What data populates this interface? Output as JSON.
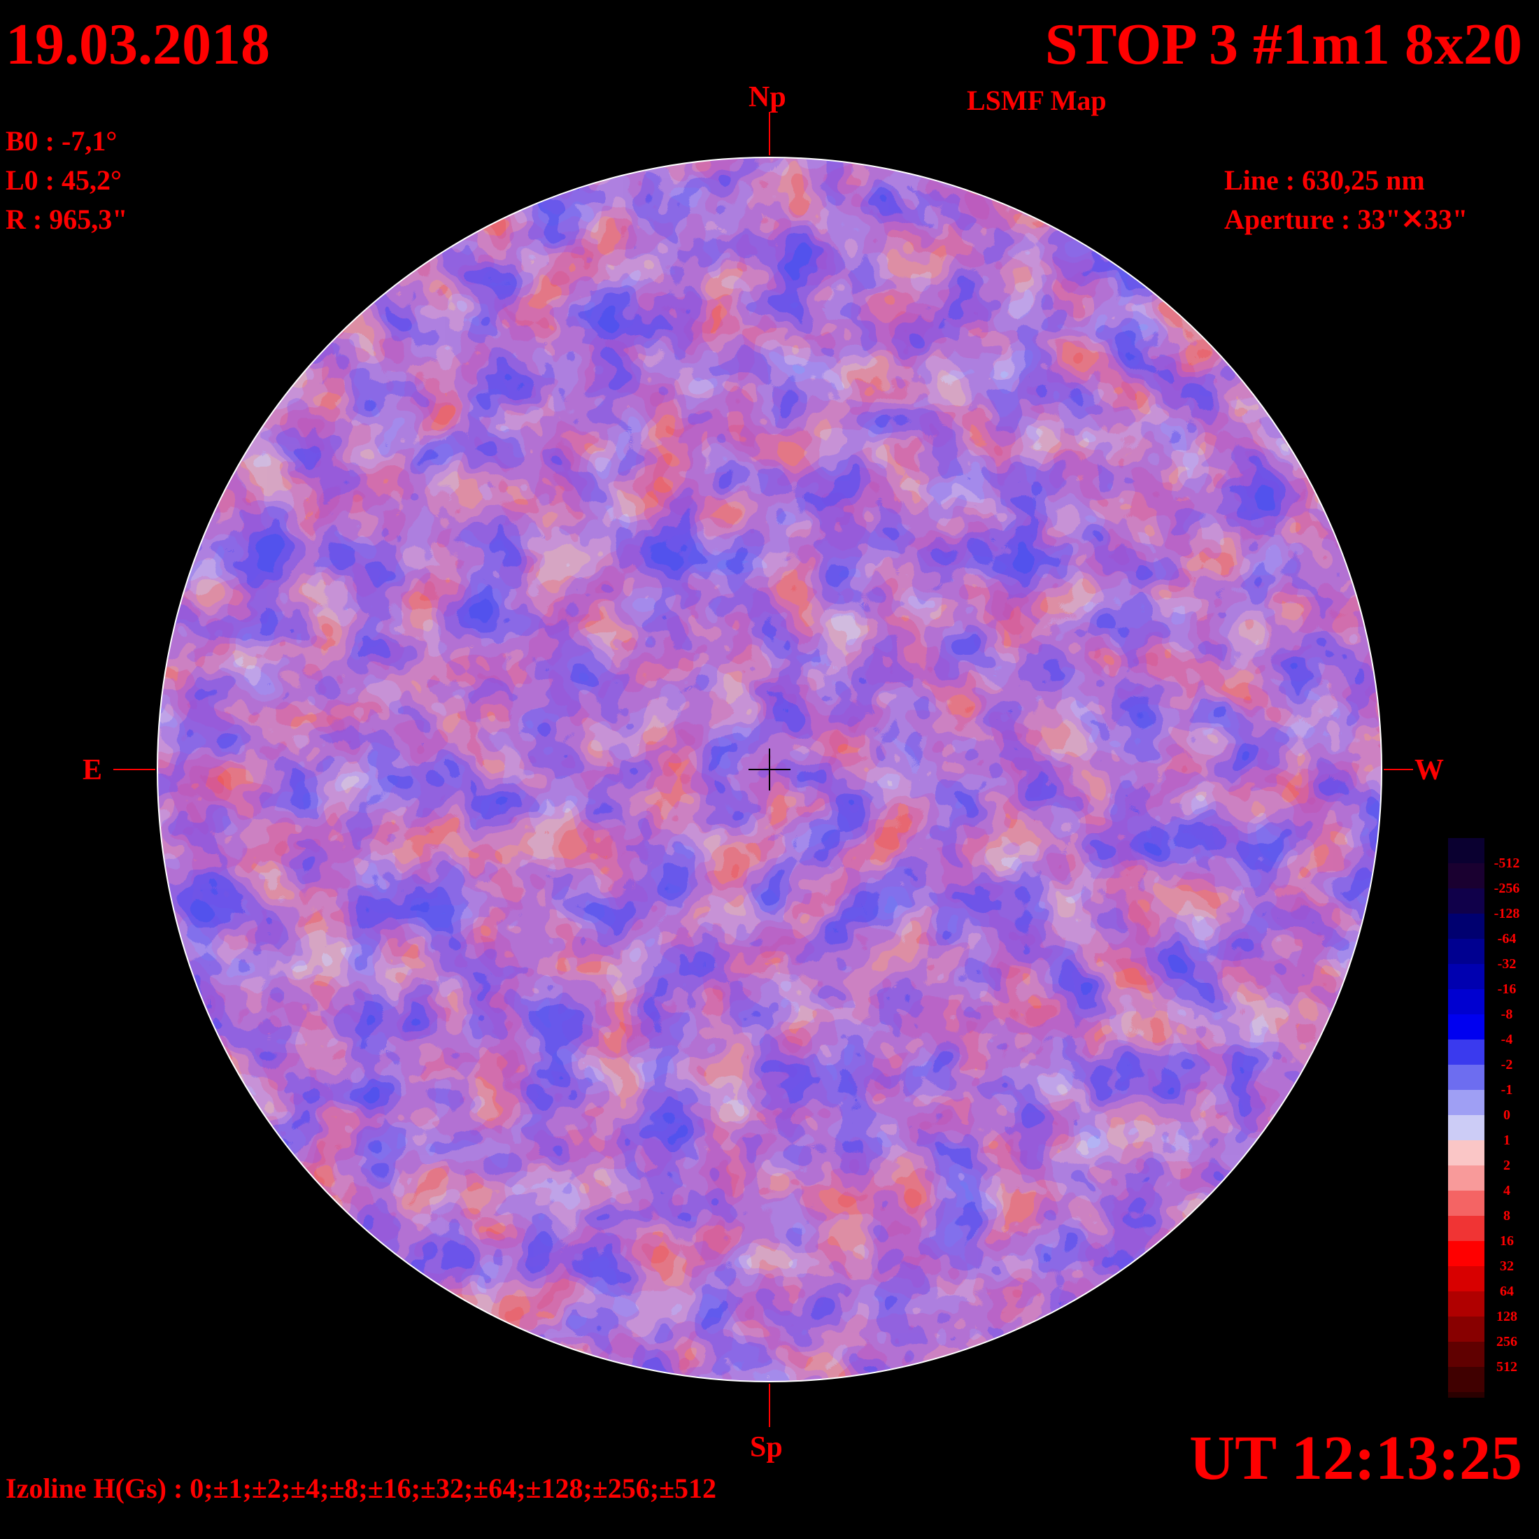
{
  "header": {
    "date": "19.03.2018",
    "title": "STOP 3 #1m1 8x20",
    "subtitle": "LSMF  Map"
  },
  "params": {
    "b0": "B0 : -7,1°",
    "l0": "L0 : 45,2°",
    "r": "R  : 965,3\""
  },
  "instrument": {
    "line": "Line :  630,25 nm",
    "aperture": "Aperture : 33\"✕33\""
  },
  "compass": {
    "north": "Np",
    "south": "Sp",
    "east": "E",
    "west": "W"
  },
  "time": "UT 12:13:25",
  "izoline": "Izoline H(Gs) : 0;±1;±2;±4;±8;±16;±32;±64;±128;±256;±512",
  "legend": {
    "levels": [
      {
        "label": "-512",
        "color": "#1a0030"
      },
      {
        "label": "-256",
        "color": "#10004a"
      },
      {
        "label": "-128",
        "color": "#000070"
      },
      {
        "label": "-64",
        "color": "#000090"
      },
      {
        "label": "-32",
        "color": "#0000b0"
      },
      {
        "label": "-16",
        "color": "#0000d0"
      },
      {
        "label": "-8",
        "color": "#0000f0"
      },
      {
        "label": "-4",
        "color": "#3a3aee"
      },
      {
        "label": "-2",
        "color": "#6d6df0"
      },
      {
        "label": "-1",
        "color": "#9f9ff4"
      },
      {
        "label": "0",
        "color": "#ccccf6"
      },
      {
        "label": "1",
        "color": "#fac6c6"
      },
      {
        "label": "2",
        "color": "#f89a9a"
      },
      {
        "label": "4",
        "color": "#f46464"
      },
      {
        "label": "8",
        "color": "#f03434"
      },
      {
        "label": "16",
        "color": "#ff0000"
      },
      {
        "label": "32",
        "color": "#d80000"
      },
      {
        "label": "64",
        "color": "#b00000"
      },
      {
        "label": "128",
        "color": "#880000"
      },
      {
        "label": "256",
        "color": "#600000"
      },
      {
        "label": "512",
        "color": "#400000"
      }
    ],
    "bottom_color": "#2a0000"
  },
  "colors": {
    "text": "#ff0000",
    "background": "#000000",
    "disk_positive": "#f46a6a",
    "disk_negative": "#7070ee",
    "disk_zero": "#ccccf6"
  }
}
